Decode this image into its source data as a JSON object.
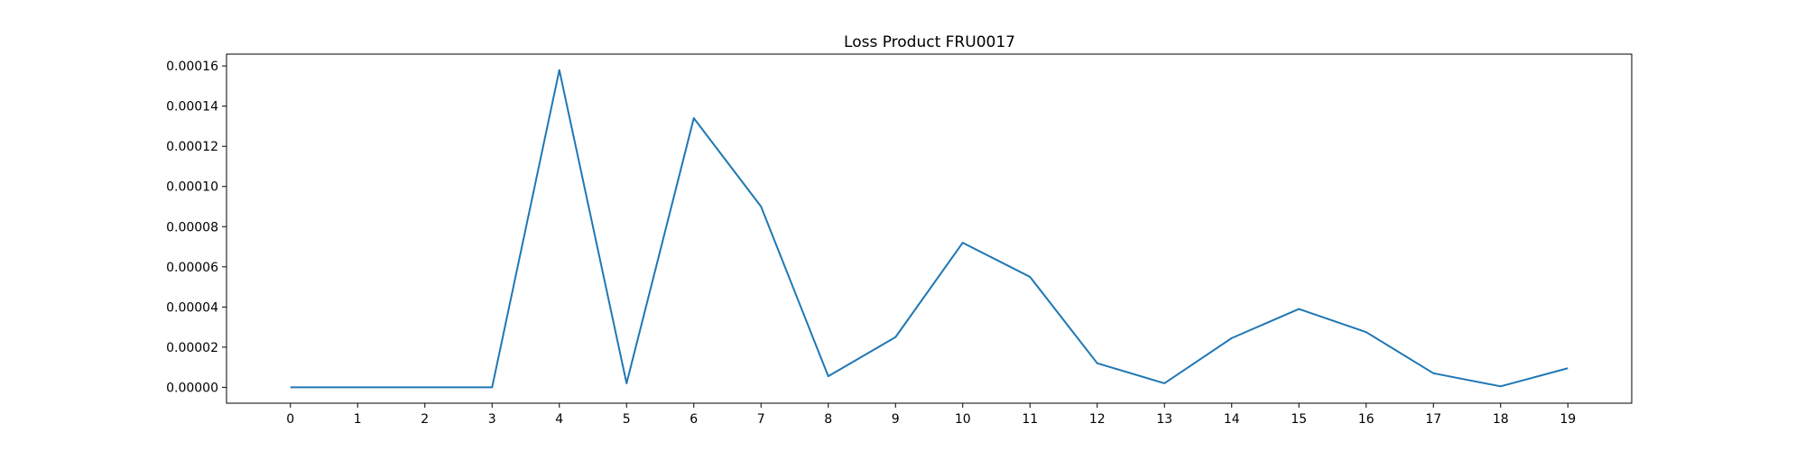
{
  "chart_data": {
    "type": "line",
    "title": "Loss Product FRU0017",
    "xlabel": "",
    "ylabel": "",
    "x": [
      0,
      1,
      2,
      3,
      4,
      5,
      6,
      7,
      8,
      9,
      10,
      11,
      12,
      13,
      14,
      15,
      16,
      17,
      18,
      19
    ],
    "series": [
      {
        "values": [
          0.0,
          0.0,
          0.0,
          0.0,
          0.000158,
          2e-06,
          0.000134,
          9e-05,
          5.5e-06,
          2.5e-05,
          7.2e-05,
          5.5e-05,
          1.2e-05,
          2e-06,
          2.45e-05,
          3.9e-05,
          2.75e-05,
          7e-06,
          5e-07,
          9.5e-06
        ],
        "color": "#1f77b4"
      }
    ],
    "xlim": [
      -0.95,
      19.95
    ],
    "ylim": [
      -7.9e-06,
      0.0001659
    ],
    "yticks": [
      0,
      2e-05,
      4e-05,
      6e-05,
      8e-05,
      0.0001,
      0.00012,
      0.00014,
      0.00016
    ],
    "ytick_labels": [
      "0.00000",
      "0.00002",
      "0.00004",
      "0.00006",
      "0.00008",
      "0.00010",
      "0.00012",
      "0.00014",
      "0.00016"
    ],
    "xticks": [
      0,
      1,
      2,
      3,
      4,
      5,
      6,
      7,
      8,
      9,
      10,
      11,
      12,
      13,
      14,
      15,
      16,
      17,
      18,
      19
    ],
    "xtick_labels": [
      "0",
      "1",
      "2",
      "3",
      "4",
      "5",
      "6",
      "7",
      "8",
      "9",
      "10",
      "11",
      "12",
      "13",
      "14",
      "15",
      "16",
      "17",
      "18",
      "19"
    ],
    "grid": false,
    "legend": "none"
  }
}
